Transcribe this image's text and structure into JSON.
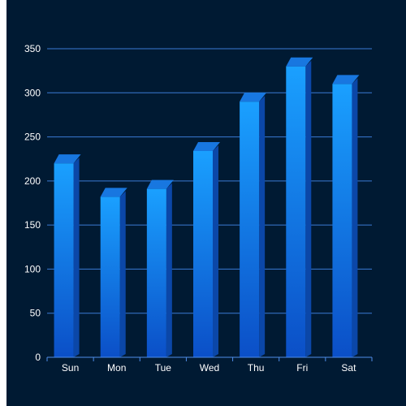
{
  "colors": {
    "background": "#001a33",
    "grid": "#3a7bd5",
    "axis": "#4f8ee8",
    "label": "#ffffff",
    "bar_top": "#1aa0ff",
    "bar_bottom": "#0b4fc7",
    "bar_side": "#0b47a8",
    "bar_cap": "#1877e0"
  },
  "chart_data": {
    "type": "bar",
    "categories": [
      "Sun",
      "Mon",
      "Tue",
      "Wed",
      "Thu",
      "Fri",
      "Sat"
    ],
    "values": [
      220,
      182,
      191,
      234,
      290,
      330,
      310
    ],
    "yticks": [
      0,
      50,
      100,
      150,
      200,
      250,
      300,
      350
    ],
    "ylim": [
      0,
      350
    ],
    "grid": true,
    "style": "3d-bar"
  }
}
